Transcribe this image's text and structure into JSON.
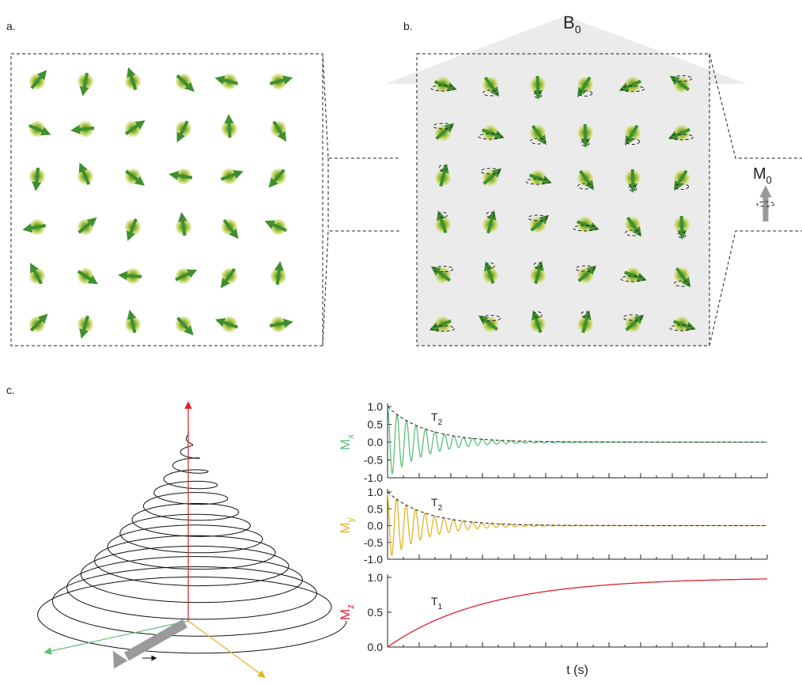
{
  "panels": {
    "a": "a.",
    "b": "b.",
    "c": "c."
  },
  "field_label": {
    "text": "B",
    "sub": "0"
  },
  "magnetization_label": {
    "text": "M",
    "sub": "0"
  },
  "chart_data": [
    {
      "type": "line",
      "ylabel": {
        "text": "M",
        "sub": "x"
      },
      "color": "#5cbf7a",
      "ylim": [
        -1,
        1
      ],
      "yticks": [
        {
          "value": -1,
          "label": "-1.0"
        },
        {
          "value": -0.5,
          "label": "-0.5"
        },
        {
          "value": 0,
          "label": "0.0"
        },
        {
          "value": 0.5,
          "label": "0.5"
        },
        {
          "value": 1,
          "label": "1.0"
        }
      ],
      "annotation": {
        "text": "T",
        "sub": "2"
      }
    },
    {
      "type": "line",
      "ylabel": {
        "text": "M",
        "sub": "y"
      },
      "color": "#e0b428",
      "ylim": [
        -1,
        1
      ],
      "yticks": [
        {
          "value": -1,
          "label": "-1.0"
        },
        {
          "value": -0.5,
          "label": "-0.5"
        },
        {
          "value": 0,
          "label": "0.0"
        },
        {
          "value": 0.5,
          "label": "0.5"
        },
        {
          "value": 1,
          "label": "1.0"
        }
      ],
      "annotation": {
        "text": "T",
        "sub": "2"
      }
    },
    {
      "type": "line",
      "ylabel": {
        "text": "M",
        "sub": "z"
      },
      "color": "#e0202a",
      "ylim": [
        0,
        1
      ],
      "yticks": [
        {
          "value": 0,
          "label": "0.0"
        },
        {
          "value": 0.5,
          "label": "0.5"
        },
        {
          "value": 1,
          "label": "1.0"
        }
      ],
      "annotation": {
        "text": "T",
        "sub": "1"
      },
      "xlabel": "t (s)"
    }
  ]
}
